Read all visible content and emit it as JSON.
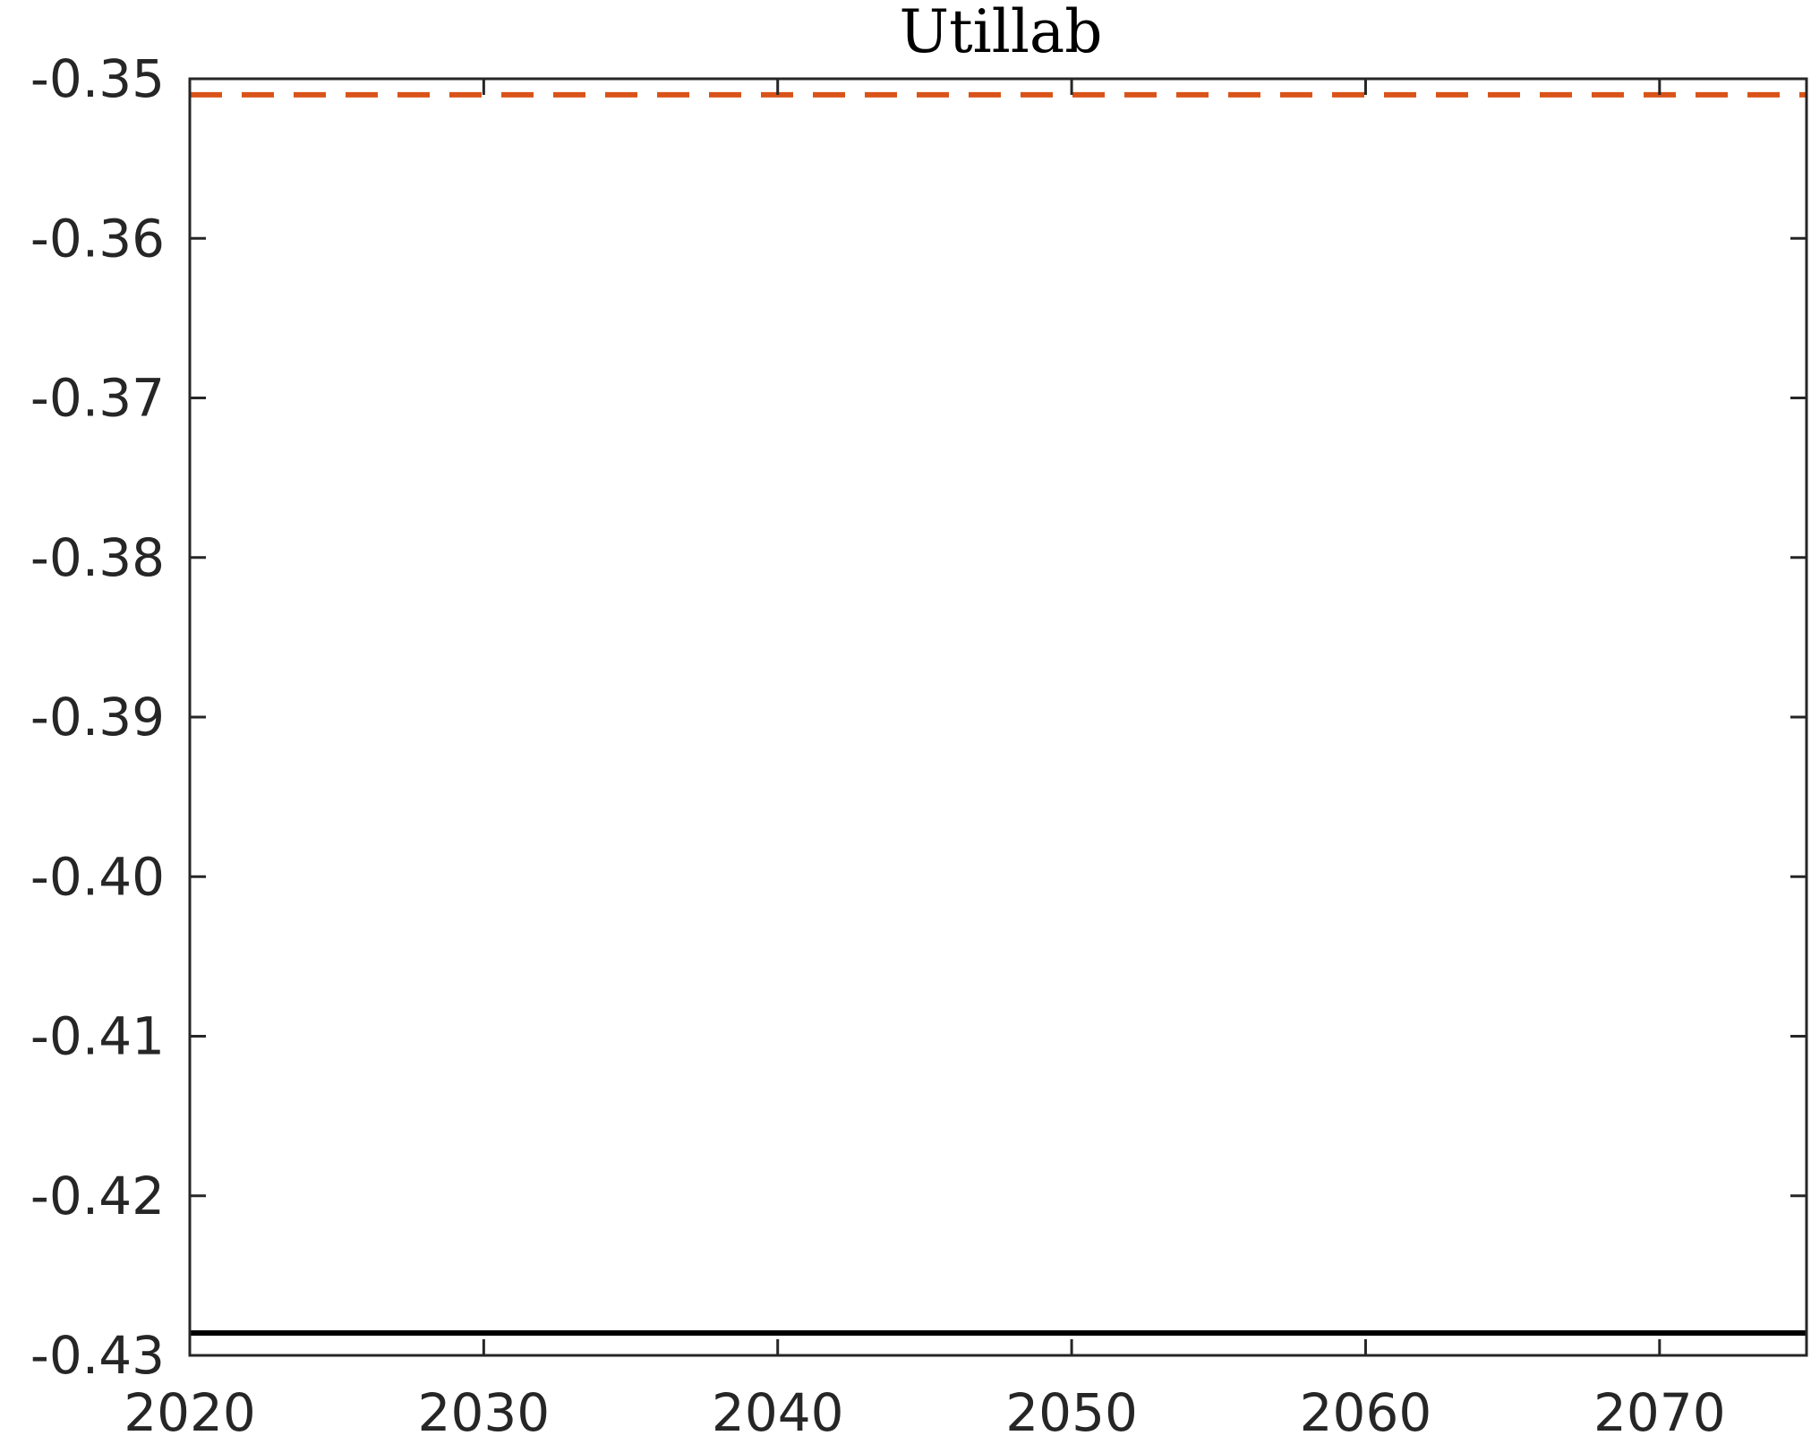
{
  "chart_data": {
    "type": "line",
    "title": "Utillab",
    "xlabel": "",
    "ylabel": "",
    "xlim": [
      2020,
      2075
    ],
    "ylim": [
      -0.43,
      -0.35
    ],
    "x_ticks": [
      2020,
      2030,
      2040,
      2050,
      2060,
      2070
    ],
    "x_tick_labels": [
      "2020",
      "2030",
      "2040",
      "2050",
      "2060",
      "2070"
    ],
    "y_ticks": [
      -0.35,
      -0.36,
      -0.37,
      -0.38,
      -0.39,
      -0.4,
      -0.41,
      -0.42,
      -0.43
    ],
    "y_tick_labels": [
      "-0.35",
      "-0.36",
      "-0.37",
      "-0.38",
      "-0.39",
      "-0.40",
      "-0.41",
      "-0.42",
      "-0.43"
    ],
    "grid": false,
    "legend": "none",
    "series": [
      {
        "x": [
          2020,
          2075
        ],
        "values": [
          -0.4286,
          -0.4286
        ],
        "color": "#000000",
        "style": "solid"
      },
      {
        "x": [
          2020,
          2075
        ],
        "values": [
          -0.351,
          -0.351
        ],
        "color": "#D95319",
        "style": "dashed"
      }
    ]
  }
}
